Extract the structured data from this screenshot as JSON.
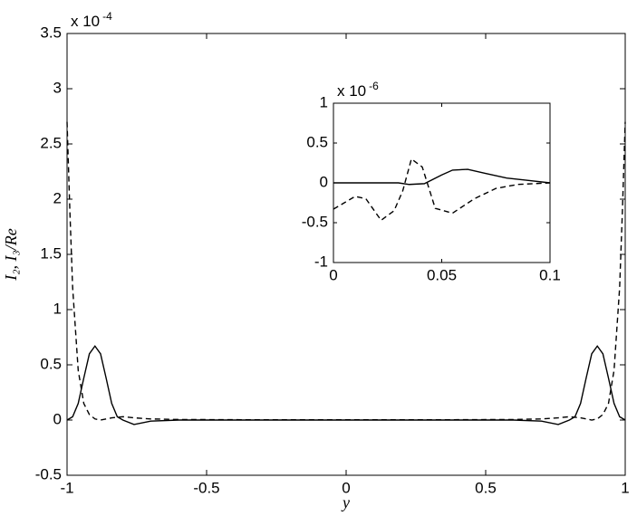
{
  "chart_data": [
    {
      "type": "line",
      "xlabel": "y",
      "ylabel": "I₂, I₃/Re",
      "y_multiplier": "x 10",
      "y_multiplier_exponent": "-4",
      "xlim": [
        -1,
        1
      ],
      "xticks": [
        -1,
        -0.5,
        0,
        0.5,
        1
      ],
      "ylim": [
        -0.5,
        3.5
      ],
      "yticks": [
        -0.5,
        0,
        0.5,
        1,
        1.5,
        2,
        2.5,
        3,
        3.5
      ],
      "series": [
        {
          "color": "#000000",
          "dash": "solid",
          "x": [
            -1,
            -0.98,
            -0.96,
            -0.94,
            -0.92,
            -0.9,
            -0.88,
            -0.86,
            -0.84,
            -0.82,
            -0.8,
            -0.76,
            -0.7,
            -0.6,
            -0.4,
            -0.2,
            0,
            0.2,
            0.4,
            0.6,
            0.7,
            0.76,
            0.8,
            0.82,
            0.84,
            0.86,
            0.88,
            0.9,
            0.92,
            0.94,
            0.96,
            0.98,
            1
          ],
          "values": [
            0,
            0.03,
            0.15,
            0.38,
            0.6,
            0.67,
            0.6,
            0.38,
            0.15,
            0.03,
            0,
            -0.04,
            -0.01,
            0,
            0,
            0,
            0,
            0,
            0,
            0,
            -0.01,
            -0.04,
            0,
            0.03,
            0.15,
            0.38,
            0.6,
            0.67,
            0.6,
            0.38,
            0.15,
            0.03,
            0
          ]
        },
        {
          "color": "#000000",
          "dash": "dashed",
          "x": [
            -1,
            -0.99,
            -0.98,
            -0.96,
            -0.94,
            -0.92,
            -0.9,
            -0.88,
            -0.86,
            -0.84,
            -0.8,
            -0.76,
            -0.7,
            -0.6,
            -0.4,
            -0.2,
            0,
            0.2,
            0.4,
            0.6,
            0.7,
            0.76,
            0.8,
            0.84,
            0.86,
            0.88,
            0.9,
            0.92,
            0.94,
            0.96,
            0.98,
            0.99,
            1
          ],
          "values": [
            2.7,
            1.9,
            1.2,
            0.45,
            0.15,
            0.05,
            0.01,
            0,
            0.01,
            0.02,
            0.03,
            0.02,
            0.01,
            0.005,
            0.003,
            0.002,
            0.002,
            0.002,
            0.003,
            0.005,
            0.01,
            0.02,
            0.03,
            0.02,
            0.01,
            0,
            0.01,
            0.05,
            0.15,
            0.45,
            1.2,
            1.9,
            2.7
          ]
        }
      ]
    },
    {
      "type": "line",
      "y_multiplier": "x 10",
      "y_multiplier_exponent": "-6",
      "xlim": [
        0,
        0.1
      ],
      "xticks": [
        0,
        0.05,
        0.1
      ],
      "ylim": [
        -1,
        1
      ],
      "yticks": [
        -1,
        -0.5,
        0,
        0.5,
        1
      ],
      "series": [
        {
          "color": "#000000",
          "dash": "solid",
          "x": [
            0,
            0.01,
            0.02,
            0.03,
            0.035,
            0.042,
            0.05,
            0.055,
            0.062,
            0.07,
            0.08,
            0.09,
            0.1
          ],
          "values": [
            0,
            0,
            0,
            0,
            -0.02,
            -0.01,
            0.1,
            0.16,
            0.17,
            0.12,
            0.06,
            0.03,
            0
          ]
        },
        {
          "color": "#000000",
          "dash": "dashed",
          "x": [
            0,
            0.005,
            0.01,
            0.015,
            0.022,
            0.028,
            0.032,
            0.036,
            0.041,
            0.047,
            0.055,
            0.065,
            0.075,
            0.085,
            0.1
          ],
          "values": [
            -0.33,
            -0.25,
            -0.17,
            -0.2,
            -0.47,
            -0.35,
            -0.1,
            0.3,
            0.2,
            -0.32,
            -0.38,
            -0.2,
            -0.07,
            -0.02,
            0
          ]
        }
      ]
    }
  ]
}
